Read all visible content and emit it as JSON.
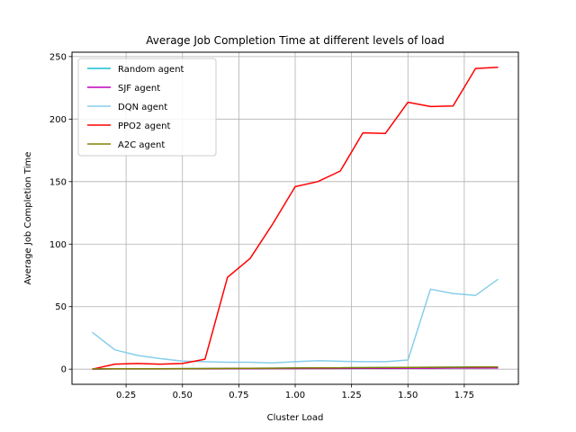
{
  "chart_data": {
    "type": "line",
    "title": "Average Job Completion Time at different levels of load",
    "xlabel": "Cluster Load",
    "ylabel": "Average Job Completion Time",
    "xlim": [
      0.01,
      1.99
    ],
    "ylim": [
      -12.1,
      253.5
    ],
    "xticks": [
      0.25,
      0.5,
      0.75,
      1.0,
      1.25,
      1.5,
      1.75
    ],
    "xtick_labels": [
      "0.25",
      "0.50",
      "0.75",
      "1.00",
      "1.25",
      "1.50",
      "1.75"
    ],
    "yticks": [
      0,
      50,
      100,
      150,
      200,
      250
    ],
    "ytick_labels": [
      "0",
      "50",
      "100",
      "150",
      "200",
      "250"
    ],
    "grid": true,
    "legend_position": "top-left",
    "x": [
      0.1,
      0.2,
      0.3,
      0.4,
      0.5,
      0.6,
      0.7,
      0.8,
      0.9,
      1.0,
      1.1,
      1.2,
      1.3,
      1.4,
      1.5,
      1.6,
      1.7,
      1.8,
      1.9
    ],
    "series": [
      {
        "name": "Random agent",
        "color": "#17becf",
        "values": [
          0.2,
          0.3,
          0.3,
          0.3,
          0.4,
          0.5,
          0.6,
          0.7,
          0.8,
          0.9,
          1.0,
          1.1,
          1.2,
          1.3,
          1.4,
          1.5,
          1.6,
          1.7,
          1.8
        ]
      },
      {
        "name": "SJF agent",
        "color": "#bf00bf",
        "values": [
          0.1,
          0.2,
          0.2,
          0.2,
          0.3,
          0.3,
          0.4,
          0.4,
          0.5,
          0.5,
          0.6,
          0.6,
          0.7,
          0.7,
          0.8,
          0.8,
          0.9,
          0.9,
          1.0
        ]
      },
      {
        "name": "DQN agent",
        "color": "#87ceeb",
        "values": [
          29.5,
          15.5,
          11.0,
          8.5,
          6.5,
          6.0,
          5.5,
          5.5,
          5.0,
          6.0,
          6.8,
          6.3,
          6.0,
          6.0,
          7.3,
          64.0,
          60.5,
          59.0,
          72.0
        ]
      },
      {
        "name": "PPO2 agent",
        "color": "#ff0000",
        "values": [
          0.0,
          4.0,
          4.5,
          4.0,
          4.5,
          8.0,
          73.5,
          88.5,
          116.0,
          146.0,
          150.0,
          158.5,
          189.0,
          188.5,
          213.5,
          210.0,
          210.5,
          240.5,
          241.5
        ]
      },
      {
        "name": "A2C agent",
        "color": "#808000",
        "values": [
          0.2,
          0.3,
          0.3,
          0.3,
          0.4,
          0.5,
          0.6,
          0.7,
          0.8,
          0.9,
          1.0,
          1.1,
          1.2,
          1.3,
          1.4,
          1.5,
          1.6,
          1.7,
          1.8
        ]
      }
    ]
  }
}
